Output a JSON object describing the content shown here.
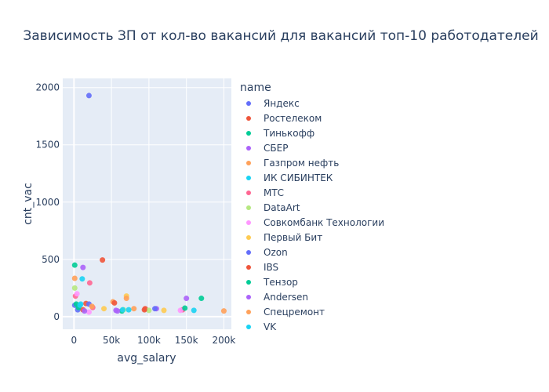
{
  "chart_data": {
    "type": "scatter",
    "title": "Зависимость ЗП от кол-во вакансий для вакансий топ-10 работодателей",
    "xlabel": "avg_salary",
    "ylabel": "cnt_vac",
    "xlim": [
      -15000,
      210000
    ],
    "ylim": [
      -110,
      2080
    ],
    "x_ticks": [
      0,
      50000,
      100000,
      150000,
      200000
    ],
    "x_tick_labels": [
      "0",
      "50k",
      "100k",
      "150k",
      "200k"
    ],
    "y_ticks": [
      0,
      500,
      1000,
      1500,
      2000
    ],
    "y_tick_labels": [
      "0",
      "500",
      "1000",
      "1500",
      "2000"
    ],
    "legend_title": "name",
    "legend_position": "right",
    "series": [
      {
        "name": "Яндекс",
        "color": "#636efa",
        "x": [
          20000,
          1000,
          5000
        ],
        "y": [
          1930,
          100,
          60
        ]
      },
      {
        "name": "Ростелеком",
        "color": "#EF553B",
        "x": [
          38000,
          16000,
          95000,
          12000
        ],
        "y": [
          495,
          115,
          70,
          60
        ]
      },
      {
        "name": "Тинькофф",
        "color": "#00cc96",
        "x": [
          1000,
          170000,
          3000,
          64000
        ],
        "y": [
          450,
          160,
          110,
          50
        ]
      },
      {
        "name": "СБЕР",
        "color": "#ab63fa",
        "x": [
          12000,
          150000,
          110000,
          58000
        ],
        "y": [
          430,
          160,
          70,
          50
        ]
      },
      {
        "name": "Газпром нефть",
        "color": "#FFA15A",
        "x": [
          1000,
          200000,
          52000,
          80000
        ],
        "y": [
          335,
          50,
          130,
          70
        ]
      },
      {
        "name": "ИК СИБИНТЕК",
        "color": "#19d3f3",
        "x": [
          11000,
          160000,
          73000,
          9000
        ],
        "y": [
          330,
          55,
          60,
          110
        ]
      },
      {
        "name": "МТС",
        "color": "#FF6692",
        "x": [
          21000,
          145000,
          2000,
          25000
        ],
        "y": [
          295,
          60,
          180,
          80
        ]
      },
      {
        "name": "DataArt",
        "color": "#B6E880",
        "x": [
          1000,
          100000,
          66000
        ],
        "y": [
          250,
          55,
          60
        ]
      },
      {
        "name": "Совкомбанк Технологии",
        "color": "#FF97FF",
        "x": [
          4000,
          142000,
          20000
        ],
        "y": [
          200,
          55,
          40
        ]
      },
      {
        "name": "Первый Бит",
        "color": "#FECB52",
        "x": [
          70000,
          120000,
          40000
        ],
        "y": [
          180,
          55,
          70
        ]
      },
      {
        "name": "Ozon",
        "color": "#636efa",
        "x": [
          108000,
          20000
        ],
        "y": [
          70,
          110
        ]
      },
      {
        "name": "IBS",
        "color": "#EF553B",
        "x": [
          54000,
          94000
        ],
        "y": [
          120,
          60
        ]
      },
      {
        "name": "Тензор",
        "color": "#00cc96",
        "x": [
          148000,
          6000
        ],
        "y": [
          75,
          80
        ]
      },
      {
        "name": "Andersen",
        "color": "#ab63fa",
        "x": [
          56000,
          14000
        ],
        "y": [
          55,
          50
        ]
      },
      {
        "name": "Спецремонт",
        "color": "#FFA15A",
        "x": [
          70000,
          24000
        ],
        "y": [
          160,
          90
        ]
      },
      {
        "name": "VK",
        "color": "#19d3f3",
        "x": [
          8000,
          65000
        ],
        "y": [
          100,
          60
        ]
      }
    ]
  }
}
